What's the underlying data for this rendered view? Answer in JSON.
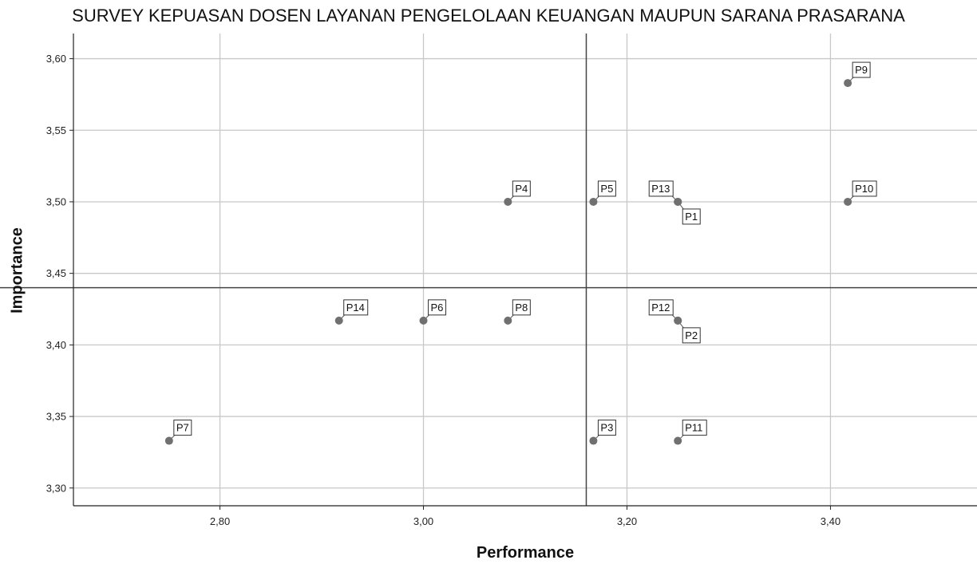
{
  "chart_data": {
    "type": "scatter",
    "title": "SURVEY KEPUASAN DOSEN LAYANAN PENGELOLAAN KEUANGAN MAUPUN SARANA PRASARANA",
    "xlabel": "Performance",
    "ylabel": "Importance",
    "xlim": [
      2.656,
      3.544
    ],
    "ylim": [
      3.2876,
      3.6176
    ],
    "x_ticks": [
      2.8,
      3.0,
      3.2,
      3.4
    ],
    "x_tick_labels": [
      "2,80",
      "3,00",
      "3,20",
      "3,40"
    ],
    "y_ticks": [
      3.3,
      3.35,
      3.4,
      3.45,
      3.5,
      3.55,
      3.6
    ],
    "y_tick_labels": [
      "3,30",
      "3,35",
      "3,40",
      "3,45",
      "3,50",
      "3,55",
      "3,60"
    ],
    "grid": true,
    "reference_lines": {
      "x": 3.16,
      "y": 3.44
    },
    "point_color": "#707070",
    "points": [
      {
        "label": "P1",
        "x": 3.25,
        "y": 3.5,
        "label_pos": "lower-right"
      },
      {
        "label": "P2",
        "x": 3.25,
        "y": 3.417,
        "label_pos": "lower-right"
      },
      {
        "label": "P3",
        "x": 3.167,
        "y": 3.333,
        "label_pos": "upper-right"
      },
      {
        "label": "P4",
        "x": 3.083,
        "y": 3.5,
        "label_pos": "upper-right"
      },
      {
        "label": "P5",
        "x": 3.167,
        "y": 3.5,
        "label_pos": "upper-right"
      },
      {
        "label": "P6",
        "x": 3.0,
        "y": 3.417,
        "label_pos": "upper-right"
      },
      {
        "label": "P7",
        "x": 2.75,
        "y": 3.333,
        "label_pos": "upper-right"
      },
      {
        "label": "P8",
        "x": 3.083,
        "y": 3.417,
        "label_pos": "upper-right"
      },
      {
        "label": "P9",
        "x": 3.417,
        "y": 3.583,
        "label_pos": "upper-right"
      },
      {
        "label": "P10",
        "x": 3.417,
        "y": 3.5,
        "label_pos": "upper-right"
      },
      {
        "label": "P11",
        "x": 3.25,
        "y": 3.333,
        "label_pos": "upper-right"
      },
      {
        "label": "P12",
        "x": 3.25,
        "y": 3.417,
        "label_pos": "upper-left"
      },
      {
        "label": "P13",
        "x": 3.25,
        "y": 3.5,
        "label_pos": "upper-left"
      },
      {
        "label": "P14",
        "x": 2.917,
        "y": 3.417,
        "label_pos": "upper-right"
      }
    ]
  }
}
